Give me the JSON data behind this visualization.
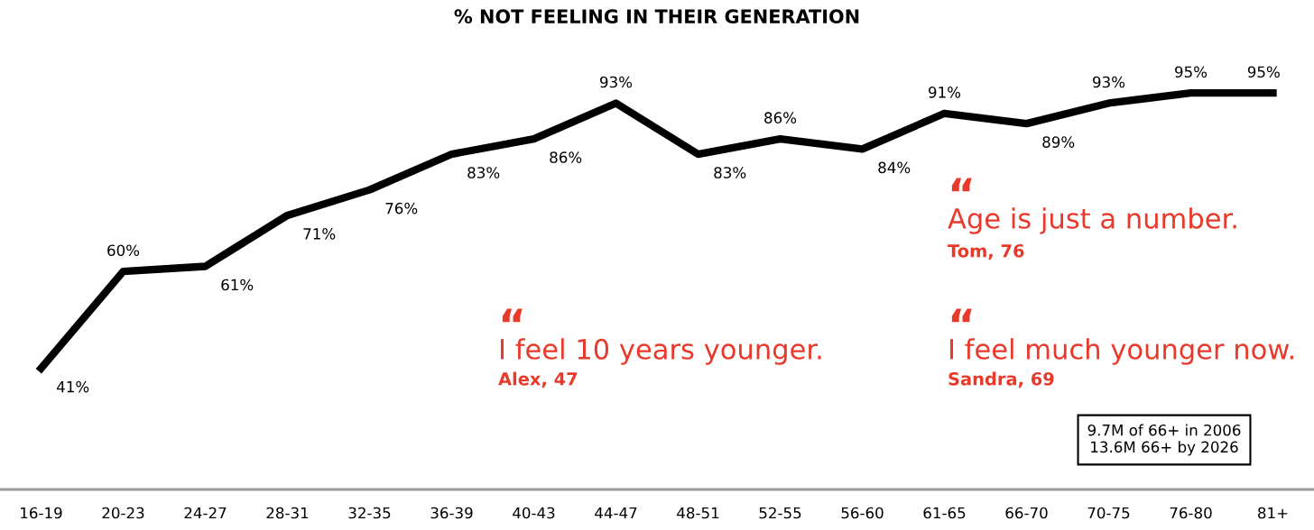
{
  "chart_data": {
    "type": "line",
    "title": "% NOT FEELING IN THEIR GENERATION",
    "categories": [
      "16-19",
      "20-23",
      "24-27",
      "28-31",
      "32-35",
      "36-39",
      "40-43",
      "44-47",
      "48-51",
      "52-55",
      "56-60",
      "61-65",
      "66-70",
      "70-75",
      "76-80",
      "81+"
    ],
    "series": [
      {
        "color": "#000000",
        "values": [
          41,
          60,
          61,
          71,
          76,
          83,
          86,
          93,
          83,
          86,
          84,
          91,
          89,
          93,
          95,
          95
        ],
        "value_labels": [
          "41%",
          "60%",
          "61%",
          "71%",
          "76%",
          "83%",
          "86%",
          "93%",
          "83%",
          "86%",
          "84%",
          "91%",
          "89%",
          "93%",
          "95%",
          "95%"
        ]
      }
    ],
    "annotations": [
      "“",
      "I feel 10 years younger.",
      "Alex, 47",
      "“",
      "Age is just a number.",
      "Tom, 76",
      "“",
      "I feel much younger now.",
      "Sandra, 69",
      "9.7M of 66+ in 2006\n13.6M 66+ by 2026"
    ],
    "grid": false,
    "legend": false,
    "marker": "none",
    "line_style": "solid"
  }
}
